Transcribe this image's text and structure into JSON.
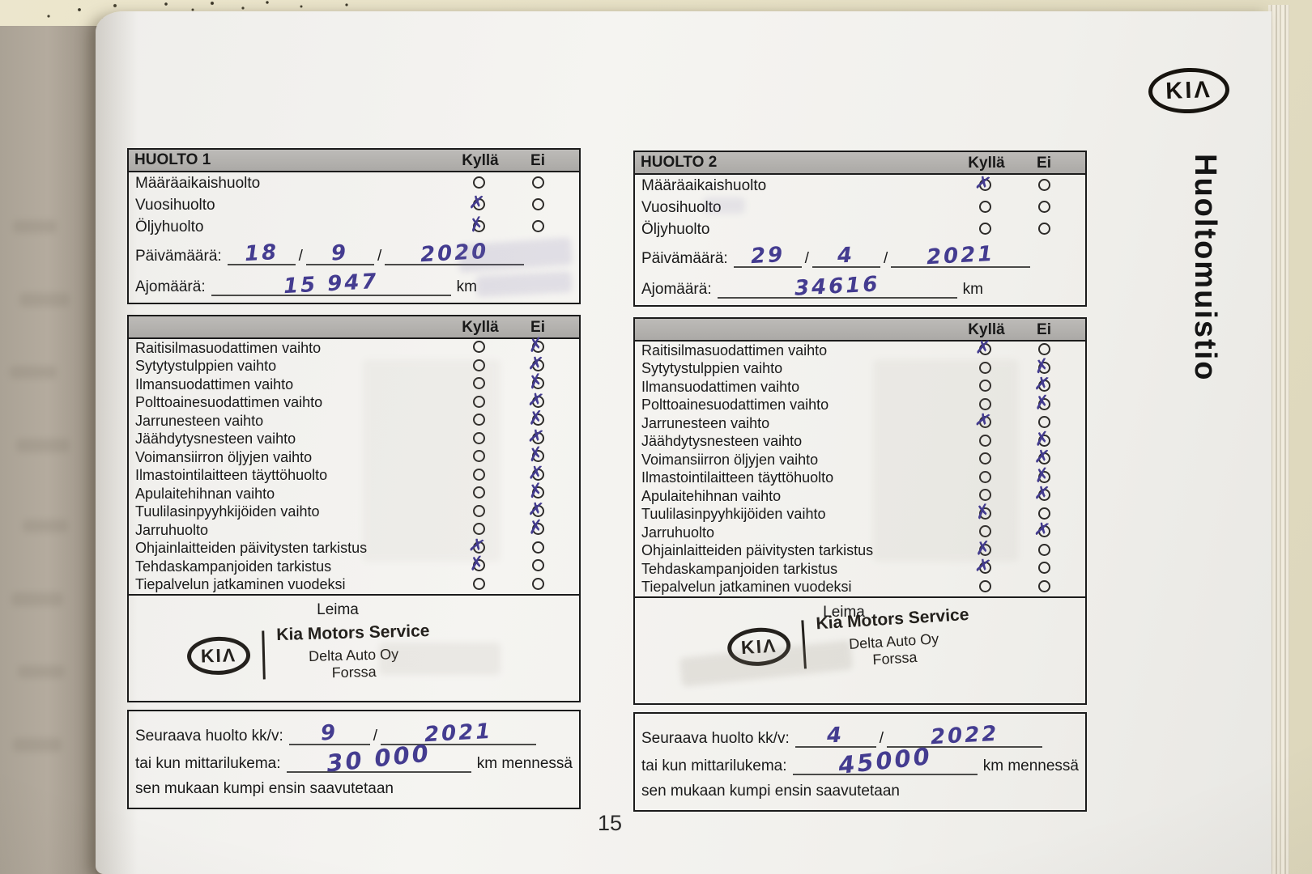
{
  "page": {
    "number": "15",
    "side_title": "Huoltomuistio",
    "brand": "KIA"
  },
  "labels": {
    "kylla": "Kyllä",
    "ei": "Ei",
    "paivamaara": "Päivämäärä:",
    "ajomaara": "Ajomäärä:",
    "km": "km",
    "slash": "/",
    "leima": "Leima",
    "seuraava_huolto": "Seuraava huolto kk/v:",
    "mittarilukema": "tai kun mittarilukema:",
    "km_mennessa": "km mennessä",
    "sen_mukaan": "sen mukaan kumpi ensin saavutetaan"
  },
  "top_items": [
    "Määräaikaishuolto",
    "Vuosihuolto",
    "Öljyhuolto"
  ],
  "checklist_items": [
    "Raitisilmasuodattimen vaihto",
    "Sytytystulppien vaihto",
    "Ilmansuodattimen vaihto",
    "Polttoainesuodattimen vaihto",
    "Jarrunesteen vaihto",
    "Jäähdytysnesteen vaihto",
    "Voimansiirron öljyjen vaihto",
    "Ilmastointilaitteen täyttöhuolto",
    "Apulaitehihnan vaihto",
    "Tuulilasinpyyhkijöiden vaihto",
    "Jarruhuolto",
    "Ohjainlaitteiden päivitysten tarkistus",
    "Tehdaskampanjoiden tarkistus",
    "Tiepalvelun jatkaminen vuodeksi"
  ],
  "stamp": {
    "line1": "Kia Motors Service",
    "line2": "Delta Auto Oy",
    "line3": "Forssa"
  },
  "forms": [
    {
      "title": "HUOLTO 1",
      "top_checks": [
        "none",
        "kylla",
        "kylla"
      ],
      "date": {
        "day": "18",
        "month": "9",
        "year": "2020"
      },
      "mileage": "15 947",
      "checks": [
        "ei",
        "ei",
        "ei",
        "ei",
        "ei",
        "ei",
        "ei",
        "ei",
        "ei",
        "ei",
        "ei",
        "kylla",
        "kylla",
        "none"
      ],
      "next_service": {
        "month": "9",
        "year": "2021",
        "mileage": "30 000"
      }
    },
    {
      "title": "HUOLTO 2",
      "top_checks": [
        "kylla",
        "none",
        "none"
      ],
      "date": {
        "day": "29",
        "month": "4",
        "year": "2021"
      },
      "mileage": "34616",
      "checks": [
        "kylla",
        "ei",
        "ei",
        "ei",
        "kylla",
        "ei",
        "ei",
        "ei",
        "ei",
        "kylla",
        "ei",
        "kylla",
        "kylla",
        "none"
      ],
      "next_service": {
        "month": "4",
        "year": "2022",
        "mileage": "45000"
      }
    }
  ]
}
